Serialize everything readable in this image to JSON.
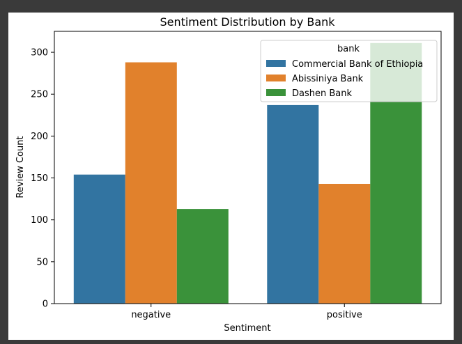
{
  "chart_data": {
    "type": "bar",
    "title": "Sentiment Distribution by Bank",
    "xlabel": "Sentiment",
    "ylabel": "Review Count",
    "categories": [
      "negative",
      "positive"
    ],
    "ylim": [
      0,
      325
    ],
    "yticks": [
      0,
      50,
      100,
      150,
      200,
      250,
      300
    ],
    "grid": false,
    "legend": {
      "title": "bank",
      "placement": "top-right"
    },
    "series": [
      {
        "name": "Commercial Bank of Ethiopia",
        "color": "#3274a1",
        "values": [
          154,
          237
        ]
      },
      {
        "name": "Abissiniya Bank",
        "color": "#e1812c",
        "values": [
          288,
          143
        ]
      },
      {
        "name": "Dashen Bank",
        "color": "#3a923a",
        "values": [
          113,
          311
        ]
      }
    ]
  }
}
